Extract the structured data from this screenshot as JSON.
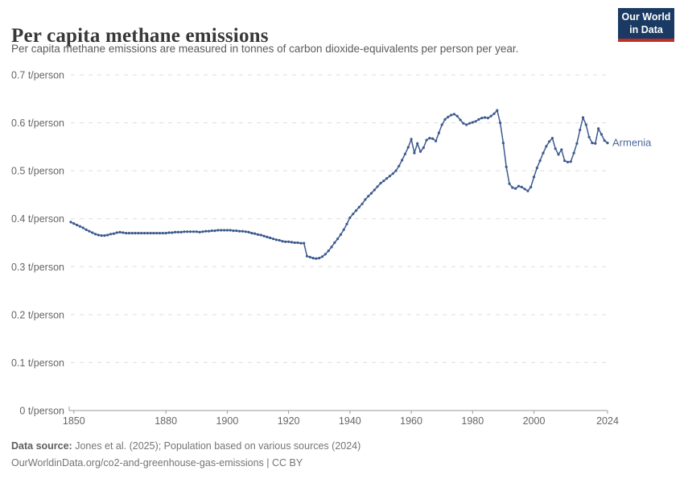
{
  "header": {
    "title": "Per capita methane emissions",
    "subtitle": "Per capita methane emissions are measured in tonnes of carbon dioxide-equivalents per person per year.",
    "logo": {
      "line1": "Our World",
      "line2": "in Data"
    }
  },
  "chart_data": {
    "type": "line",
    "title": "Per capita methane emissions",
    "unit": "t/person",
    "ytick_suffix": " t/person",
    "xlim": [
      1849,
      2024
    ],
    "ylim": [
      0,
      0.7
    ],
    "grid": "horizontal-dashed",
    "legend_position": "end-of-line",
    "xticks": [
      1850,
      1880,
      1900,
      1920,
      1940,
      1960,
      1980,
      2000,
      2024
    ],
    "yticks": [
      0,
      0.1,
      0.2,
      0.3,
      0.4,
      0.5,
      0.6,
      0.7
    ],
    "series": [
      {
        "name": "Armenia",
        "color": "#3d5a8e",
        "label_color": "#4c6a9c",
        "years": [
          1849,
          1850,
          1851,
          1852,
          1853,
          1854,
          1855,
          1856,
          1857,
          1858,
          1859,
          1860,
          1861,
          1862,
          1863,
          1864,
          1865,
          1866,
          1867,
          1868,
          1869,
          1870,
          1871,
          1872,
          1873,
          1874,
          1875,
          1876,
          1877,
          1878,
          1879,
          1880,
          1881,
          1882,
          1883,
          1884,
          1885,
          1886,
          1887,
          1888,
          1889,
          1890,
          1891,
          1892,
          1893,
          1894,
          1895,
          1896,
          1897,
          1898,
          1899,
          1900,
          1901,
          1902,
          1903,
          1904,
          1905,
          1906,
          1907,
          1908,
          1909,
          1910,
          1911,
          1912,
          1913,
          1914,
          1915,
          1916,
          1917,
          1918,
          1919,
          1920,
          1921,
          1922,
          1923,
          1924,
          1925,
          1926,
          1927,
          1928,
          1929,
          1930,
          1931,
          1932,
          1933,
          1934,
          1935,
          1936,
          1937,
          1938,
          1939,
          1940,
          1941,
          1942,
          1943,
          1944,
          1945,
          1946,
          1947,
          1948,
          1949,
          1950,
          1951,
          1952,
          1953,
          1954,
          1955,
          1956,
          1957,
          1958,
          1959,
          1960,
          1961,
          1962,
          1963,
          1964,
          1965,
          1966,
          1967,
          1968,
          1969,
          1970,
          1971,
          1972,
          1973,
          1974,
          1975,
          1976,
          1977,
          1978,
          1979,
          1980,
          1981,
          1982,
          1983,
          1984,
          1985,
          1986,
          1987,
          1988,
          1989,
          1990,
          1991,
          1992,
          1993,
          1994,
          1995,
          1996,
          1997,
          1998,
          1999,
          2000,
          2001,
          2002,
          2003,
          2004,
          2005,
          2006,
          2007,
          2008,
          2009,
          2010,
          2011,
          2012,
          2013,
          2014,
          2015,
          2016,
          2017,
          2018,
          2019,
          2020,
          2021,
          2022,
          2023,
          2024
        ],
        "values": [
          0.393,
          0.39,
          0.387,
          0.384,
          0.381,
          0.377,
          0.374,
          0.371,
          0.368,
          0.366,
          0.365,
          0.365,
          0.366,
          0.368,
          0.369,
          0.371,
          0.372,
          0.371,
          0.37,
          0.37,
          0.37,
          0.37,
          0.37,
          0.37,
          0.37,
          0.37,
          0.37,
          0.37,
          0.37,
          0.37,
          0.37,
          0.37,
          0.371,
          0.371,
          0.372,
          0.372,
          0.372,
          0.373,
          0.373,
          0.373,
          0.373,
          0.373,
          0.372,
          0.373,
          0.374,
          0.374,
          0.375,
          0.375,
          0.376,
          0.376,
          0.376,
          0.376,
          0.376,
          0.375,
          0.375,
          0.374,
          0.374,
          0.373,
          0.372,
          0.37,
          0.369,
          0.367,
          0.366,
          0.364,
          0.362,
          0.36,
          0.358,
          0.356,
          0.355,
          0.353,
          0.352,
          0.352,
          0.351,
          0.35,
          0.35,
          0.349,
          0.349,
          0.322,
          0.32,
          0.318,
          0.317,
          0.318,
          0.321,
          0.326,
          0.333,
          0.341,
          0.35,
          0.358,
          0.367,
          0.377,
          0.389,
          0.402,
          0.41,
          0.417,
          0.424,
          0.431,
          0.44,
          0.447,
          0.453,
          0.46,
          0.467,
          0.474,
          0.479,
          0.484,
          0.489,
          0.494,
          0.5,
          0.51,
          0.522,
          0.535,
          0.549,
          0.566,
          0.537,
          0.557,
          0.54,
          0.548,
          0.564,
          0.568,
          0.567,
          0.562,
          0.579,
          0.596,
          0.607,
          0.612,
          0.616,
          0.618,
          0.614,
          0.606,
          0.599,
          0.596,
          0.599,
          0.601,
          0.603,
          0.607,
          0.61,
          0.611,
          0.61,
          0.614,
          0.619,
          0.626,
          0.6,
          0.558,
          0.508,
          0.473,
          0.465,
          0.463,
          0.468,
          0.466,
          0.462,
          0.458,
          0.466,
          0.487,
          0.506,
          0.521,
          0.537,
          0.551,
          0.561,
          0.568,
          0.546,
          0.534,
          0.544,
          0.521,
          0.518,
          0.519,
          0.537,
          0.557,
          0.585,
          0.611,
          0.596,
          0.57,
          0.558,
          0.557,
          0.588,
          0.576,
          0.563,
          0.558
        ]
      }
    ]
  },
  "footer": {
    "source_label": "Data source:",
    "source_text": " Jones et al. (2025); Population based on various sources (2024)",
    "note": "OurWorldinData.org/co2-and-greenhouse-gas-emissions | CC BY"
  },
  "colors": {
    "grid": "#dddddd",
    "axis": "#9a9a9a",
    "tick_text": "#666666",
    "logo_bg": "#1b3a63",
    "logo_red": "#bc2f26"
  }
}
